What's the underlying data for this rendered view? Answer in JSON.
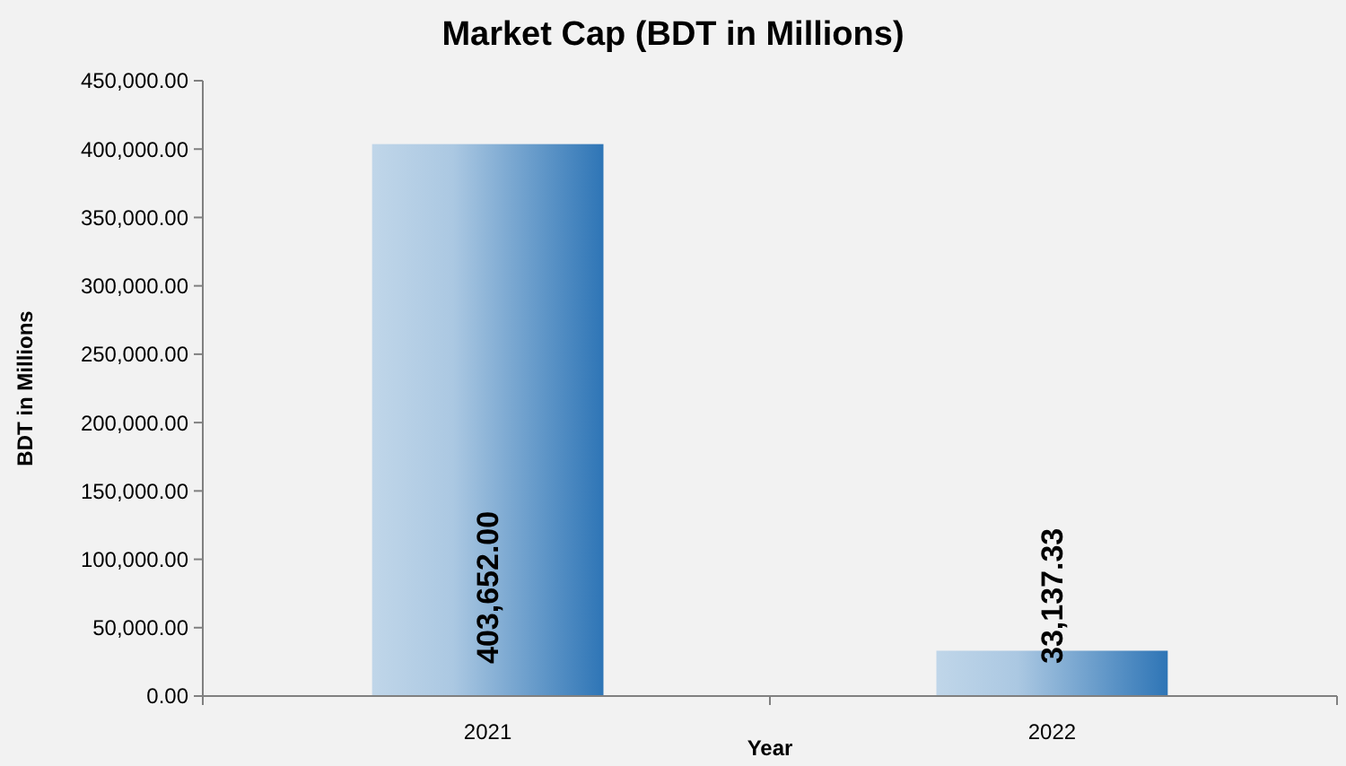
{
  "chart_data": {
    "type": "bar",
    "title": "Market Cap (BDT in Millions)",
    "xlabel": "Year",
    "ylabel": "BDT in Millions",
    "categories": [
      "2021",
      "2022"
    ],
    "values": [
      403652.0,
      33137.33
    ],
    "value_labels": [
      "403,652.00",
      "33,137.33"
    ],
    "color": "#2e75b6",
    "ylim": [
      0,
      450000
    ],
    "yticks": [
      {
        "value": 0,
        "label": "0.00"
      },
      {
        "value": 50000,
        "label": "50,000.00"
      },
      {
        "value": 100000,
        "label": "100,000.00"
      },
      {
        "value": 150000,
        "label": "150,000.00"
      },
      {
        "value": 200000,
        "label": "200,000.00"
      },
      {
        "value": 250000,
        "label": "250,000.00"
      },
      {
        "value": 300000,
        "label": "300,000.00"
      },
      {
        "value": 350000,
        "label": "350,000.00"
      },
      {
        "value": 400000,
        "label": "400,000.00"
      },
      {
        "value": 450000,
        "label": "450,000.00"
      }
    ],
    "grid": false
  }
}
